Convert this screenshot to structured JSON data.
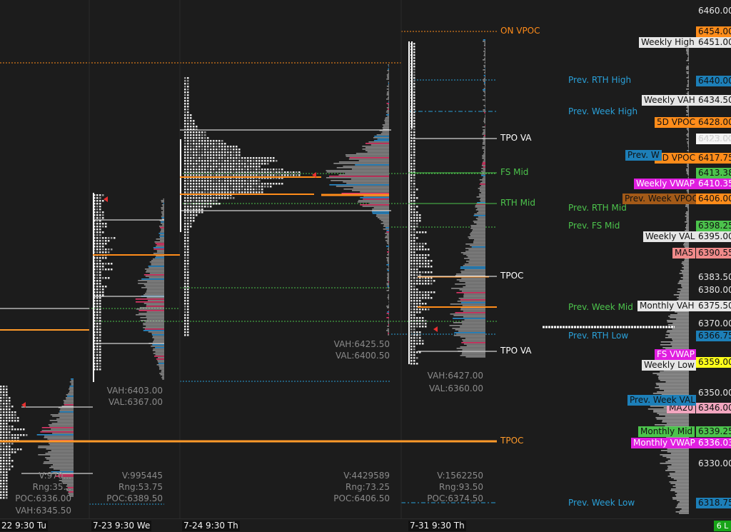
{
  "chart_data": {
    "type": "market_profile",
    "y_axis": {
      "min": 6315,
      "max": 6462,
      "tick_labels": [
        "6460.00",
        "6423.00",
        "6383.50",
        "6380.00",
        "6370.00",
        "6350.00",
        "6330.00"
      ]
    },
    "sessions": [
      {
        "date_label": "22  9:30 Tu",
        "stats": [
          "V:970...",
          "Rng:35...",
          "POC:6336.00",
          "VAH:6345.50"
        ]
      },
      {
        "date_label": "7-23  9:30 We",
        "stats": [
          "VAH:6403.00",
          "VAL:6367.00",
          "V:995445",
          "Rng:53.75",
          "POC:6389.50"
        ]
      },
      {
        "date_label": "7-24  9:30 Th",
        "stats": [
          "VAH:6425.50",
          "VAL:6400.50",
          "V:4429589",
          "Rng:73.25",
          "POC:6406.50"
        ]
      },
      {
        "date_label": "7-31  9:30 Th",
        "stats": [
          "VAH:6427.00",
          "VAL:6360.00",
          "V:1562250",
          "Rng:93.50",
          "POC:6374.50"
        ]
      }
    ],
    "level_lines": [
      {
        "label": "ON VPOC",
        "value": 6454,
        "color": "#ff8c1a"
      },
      {
        "label": "TPO VA",
        "value": 6423,
        "color": "#ffffff"
      },
      {
        "label": "FS Mid",
        "value": 6414,
        "color": "#4cc34c"
      },
      {
        "label": "RTH Mid",
        "value": 6405,
        "color": "#4cc34c"
      },
      {
        "label": "TPOC",
        "value": 6382,
        "color": "#ffffff"
      },
      {
        "label": "TPO VA",
        "value": 6360,
        "color": "#ffffff"
      },
      {
        "label": "TPOC",
        "value": 6340.5,
        "color": "#ff9a2a"
      }
    ],
    "reference_levels": [
      {
        "label": "Prev. RTH High",
        "value": 6440,
        "color": "#2aa0d8"
      },
      {
        "label": "Prev. Week High",
        "value": 6431,
        "color": "#2aa0d8"
      },
      {
        "label": "Prev. RTH Mid",
        "value": 6402,
        "color": "#4cc34c"
      },
      {
        "label": "Prev. FS Mid",
        "value": 6397,
        "color": "#4cc34c"
      },
      {
        "label": "Prev. Week Mid",
        "value": 6374,
        "color": "#4cc34c"
      },
      {
        "label": "Prev. RTH Low",
        "value": 6366.75,
        "color": "#2aa0d8"
      },
      {
        "label": "Prev. Week Low",
        "value": 6318.75,
        "color": "#2aa0d8"
      }
    ],
    "indicator_tags": [
      {
        "label": "Weekly High",
        "value": 6451,
        "bg": "#e6e6e6",
        "fg": "#111"
      },
      {
        "label": "Weekly VAH",
        "value": 6434.5,
        "bg": "#e6e6e6",
        "fg": "#111"
      },
      {
        "label": "Weekly Low",
        "value": 6359,
        "bg": "#e6e6e6",
        "fg": "#111"
      },
      {
        "label": "Weekly VAL",
        "value": 6395,
        "bg": "#e6e6e6",
        "fg": "#111"
      },
      {
        "label": "Monthly VAH",
        "value": 6375.5,
        "bg": "#e6e6e6",
        "fg": "#111"
      },
      {
        "label": "5D VPOC",
        "value": 6428,
        "bg": "#ff8c1a",
        "fg": "#111"
      },
      {
        "label": "2D VPOC",
        "value": 6417.75,
        "bg": "#ff8c1a",
        "fg": "#111"
      },
      {
        "label": "Weekly VWAP",
        "value": 6410.35,
        "bg": "#e01ee0",
        "fg": "#fff"
      },
      {
        "label": "Prev. Week VPOC",
        "value": 6406,
        "bg": "#a35a18",
        "fg": "#111"
      },
      {
        "label": "MA5",
        "value": 6390.55,
        "bg": "#f08a8a",
        "fg": "#111"
      },
      {
        "label": "FS VWAP",
        "value": 6361.05,
        "bg": "#e01ee0",
        "fg": "#fff"
      },
      {
        "label": "MA20",
        "value": 6346,
        "bg": "#f2a6bf",
        "fg": "#111"
      },
      {
        "label": "Monthly Mid",
        "value": 6339.25,
        "bg": "#4cc34c",
        "fg": "#111"
      },
      {
        "label": "Monthly VWAP",
        "value": 6336.03,
        "bg": "#e01ee0",
        "fg": "#fff"
      },
      {
        "label": "Prev. Week VAL",
        "value": 6348.25,
        "bg": "#1d7fb8",
        "fg": "#111"
      },
      {
        "label": "Prev. W",
        "value": 6417,
        "bg": "#1d7fb8",
        "fg": "#111"
      }
    ],
    "price_tags": [
      {
        "text": "6454.00",
        "value": 6454,
        "bg": "#ff8c1a",
        "fg": "#111"
      },
      {
        "text": "6451.00",
        "value": 6451,
        "bg": "#e6e6e6",
        "fg": "#111"
      },
      {
        "text": "6440.00",
        "value": 6440,
        "bg": "#1d7fb8",
        "fg": "#111"
      },
      {
        "text": "6434.50",
        "value": 6434.5,
        "bg": "#e6e6e6",
        "fg": "#111"
      },
      {
        "text": "6428.00",
        "value": 6428,
        "bg": "#ff8c1a",
        "fg": "#111"
      },
      {
        "text": "6423.00",
        "value": 6423,
        "bg": "#f5f5f5",
        "fg": "#111"
      },
      {
        "text": "6417.75",
        "value": 6417.75,
        "bg": "#ff8c1a",
        "fg": "#111"
      },
      {
        "text": "6413.38",
        "value": 6413.38,
        "bg": "#4cc34c",
        "fg": "#111"
      },
      {
        "text": "6410.35",
        "value": 6410.35,
        "bg": "#e01ee0",
        "fg": "#fff"
      },
      {
        "text": "6406.00",
        "value": 6406,
        "bg": "#ff8c1a",
        "fg": "#111"
      },
      {
        "text": "6398.25",
        "value": 6398.25,
        "bg": "#4cc34c",
        "fg": "#111"
      },
      {
        "text": "6395.00",
        "value": 6395,
        "bg": "#e6e6e6",
        "fg": "#111"
      },
      {
        "text": "6390.55",
        "value": 6390.55,
        "bg": "#f08a8a",
        "fg": "#111"
      },
      {
        "text": "6375.50",
        "value": 6375.5,
        "bg": "#e6e6e6",
        "fg": "#111"
      },
      {
        "text": "6366.75",
        "value": 6366.75,
        "bg": "#1d7fb8",
        "fg": "#111"
      },
      {
        "text": "6359.00",
        "value": 6359,
        "bg": "#ffff1a",
        "fg": "#111"
      },
      {
        "text": "6346.00",
        "value": 6346,
        "bg": "#f2a6bf",
        "fg": "#111"
      },
      {
        "text": "6339.25",
        "value": 6339.25,
        "bg": "#4cc34c",
        "fg": "#111"
      },
      {
        "text": "6336.03",
        "value": 6336.03,
        "bg": "#e01ee0",
        "fg": "#fff"
      },
      {
        "text": "6318.75",
        "value": 6318.75,
        "bg": "#1d7fb8",
        "fg": "#111"
      }
    ],
    "corner_badge": "6 L"
  }
}
